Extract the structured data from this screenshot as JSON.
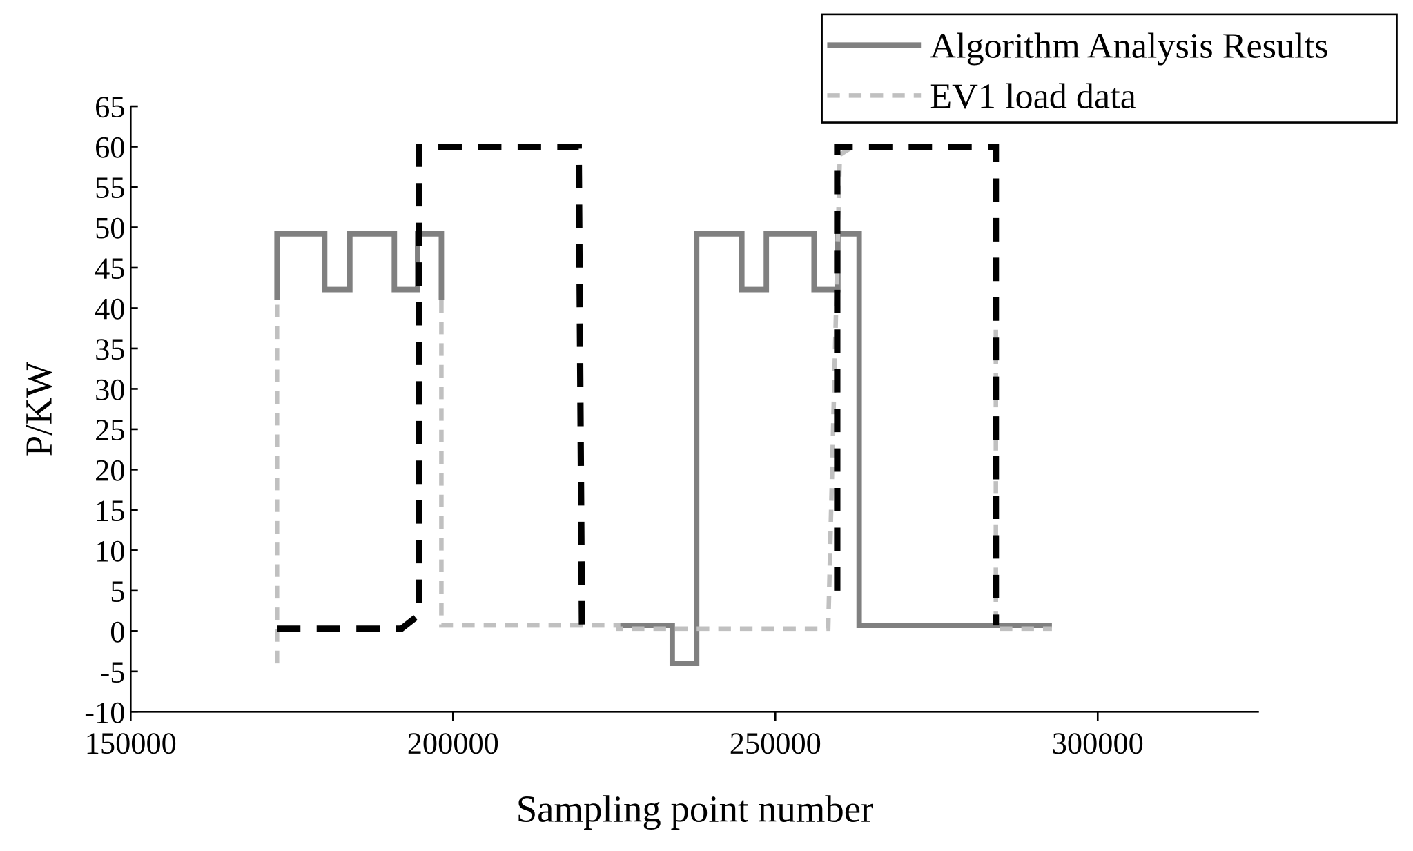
{
  "chart_data": {
    "type": "line",
    "xlabel": "Sampling point number",
    "ylabel": "P/KW",
    "xlim": [
      150000,
      325000
    ],
    "xticks": [
      150000,
      200000,
      250000,
      300000
    ],
    "ylim": [
      -10,
      65
    ],
    "yticks": [
      -10,
      -5,
      0,
      5,
      10,
      15,
      20,
      25,
      30,
      35,
      40,
      45,
      50,
      55,
      60,
      65
    ],
    "legend": "top-right",
    "series": [
      {
        "name": "Algorithm Analysis Results",
        "color": "#808080",
        "style": "solid",
        "x": [
          172700,
          172700,
          180100,
          180100,
          184000,
          184000,
          190900,
          190900,
          194500,
          194500,
          198200,
          198200,
          null,
          225600,
          234000,
          234000,
          237800,
          237800,
          244800,
          244800,
          248600,
          248600,
          256000,
          256000,
          259700,
          259700,
          263000,
          263000,
          292900
        ],
        "values": [
          41,
          49.2,
          49.2,
          42.3,
          42.3,
          49.2,
          49.2,
          42.3,
          42.3,
          49.2,
          49.2,
          41,
          null,
          0.7,
          0.7,
          -4,
          -4,
          49.2,
          49.2,
          42.3,
          42.3,
          49.2,
          49.2,
          42.3,
          42.3,
          49.2,
          49.2,
          0.7,
          0.7
        ]
      },
      {
        "name": "EV1 load data",
        "color": "#c0c0c0",
        "style": "dashed",
        "x": [
          172700,
          172700,
          null,
          198200,
          198200,
          225600,
          225600,
          258200,
          260000,
          262000,
          null,
          284200,
          284200,
          292900
        ],
        "values": [
          -4,
          41,
          null,
          41,
          0.7,
          0.7,
          0.3,
          0.3,
          59,
          60,
          null,
          40,
          0.3,
          0.3
        ]
      },
      {
        "color": "#000000",
        "style": "heavy-dashed",
        "x": [
          172700,
          192000,
          194700,
          194700,
          219500,
          220000,
          null,
          259600,
          259600,
          284200,
          284200
        ],
        "values": [
          0.3,
          0.3,
          2,
          60,
          60,
          0,
          null,
          5,
          60,
          60,
          0.7
        ]
      }
    ]
  }
}
